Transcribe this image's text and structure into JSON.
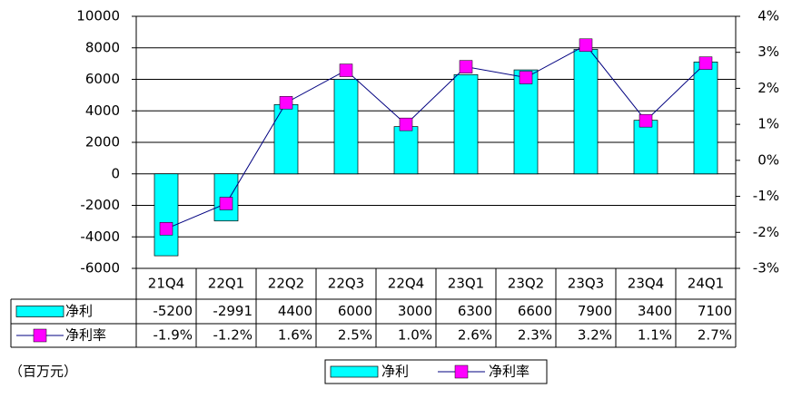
{
  "chart_data": {
    "type": "bar_line",
    "unit_label": "（百万元）",
    "categories": [
      "21Q4",
      "22Q1",
      "22Q2",
      "22Q3",
      "22Q4",
      "23Q1",
      "23Q2",
      "23Q3",
      "23Q4",
      "24Q1"
    ],
    "series": [
      {
        "name": "净利",
        "color": "#00FFFF",
        "values": [
          -5200,
          -2991,
          4400,
          6000,
          3000,
          6300,
          6600,
          7900,
          3400,
          7100
        ]
      },
      {
        "name": "净利率",
        "color": "#FF00FF",
        "line_color": "#000080",
        "axis": "y2",
        "values": [
          -1.9,
          -1.2,
          1.6,
          2.5,
          1.0,
          2.6,
          2.3,
          3.2,
          1.1,
          2.7
        ],
        "value_labels": [
          "-1.9%",
          "-1.2%",
          "1.6%",
          "2.5%",
          "1.0%",
          "2.6%",
          "2.3%",
          "3.2%",
          "1.1%",
          "2.7%"
        ]
      }
    ],
    "ylim": [
      -6000,
      10000
    ],
    "yticks": [
      -6000,
      -4000,
      -2000,
      0,
      2000,
      4000,
      6000,
      8000,
      10000
    ],
    "y2lim": [
      -3,
      4
    ],
    "y2ticks": [
      {
        "value": -3,
        "label": "-3%"
      },
      {
        "value": -2,
        "label": "-2%"
      },
      {
        "value": -1,
        "label": "-1%"
      },
      {
        "value": 0,
        "label": "0%"
      },
      {
        "value": 1,
        "label": "1%"
      },
      {
        "value": 2,
        "label": "2%"
      },
      {
        "value": 3,
        "label": "3%"
      },
      {
        "value": 4,
        "label": "4%"
      }
    ],
    "grid": true,
    "data_table": true
  }
}
